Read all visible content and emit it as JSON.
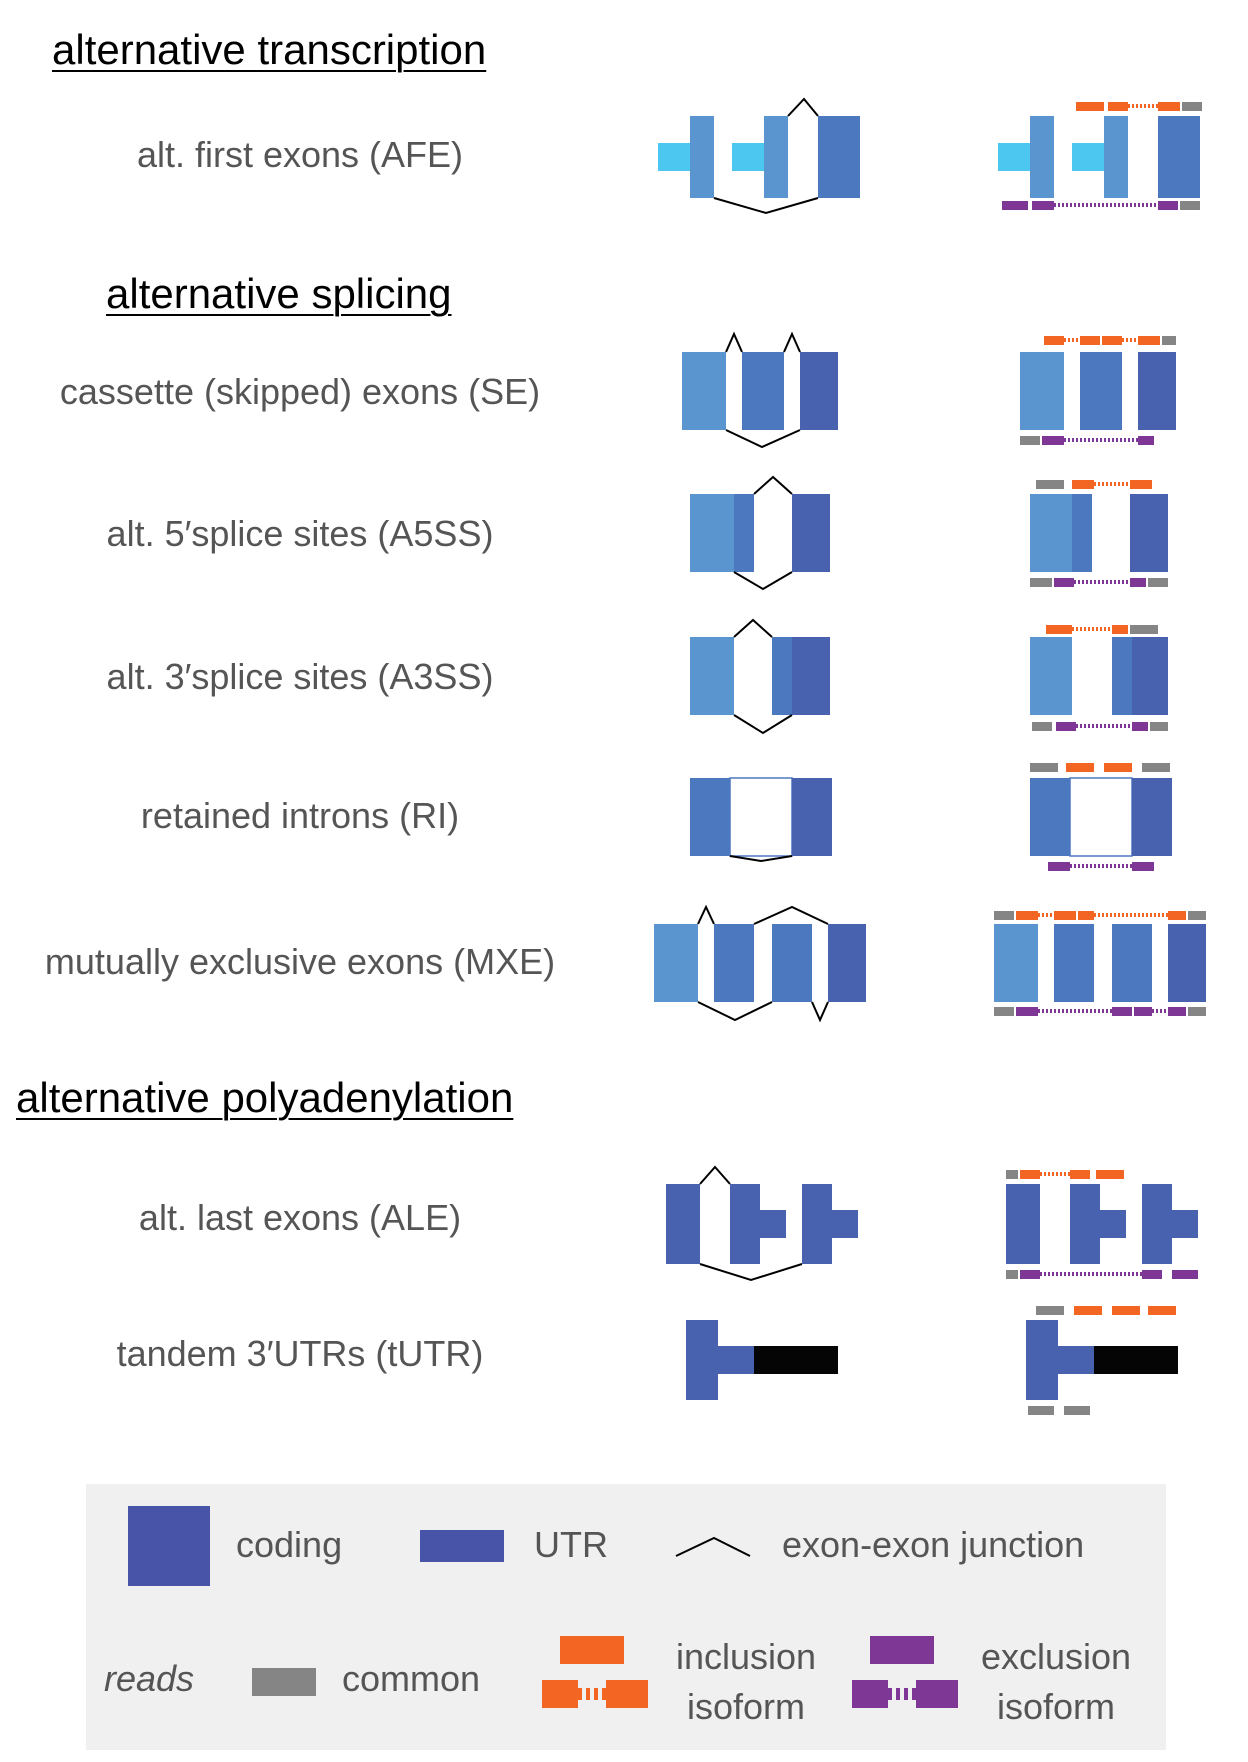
{
  "sections": {
    "transcription": "alternative transcription",
    "splicing": "alternative splicing",
    "polyadenylation": "alternative polyadenylation"
  },
  "events": {
    "afe": "alt. first exons (AFE)",
    "se": "cassette (skipped) exons (SE)",
    "a5ss": "alt. 5′splice sites (A5SS)",
    "a3ss": "alt. 3′splice sites (A3SS)",
    "ri": "retained introns (RI)",
    "mxe": "mutually exclusive exons (MXE)",
    "ale": "alt. last exons (ALE)",
    "tutr": "tandem 3′UTRs (tUTR)"
  },
  "legend": {
    "coding": "coding",
    "utr": "UTR",
    "junction": "exon-exon junction",
    "reads": "reads",
    "common": "common",
    "inclusion_line1": "inclusion",
    "inclusion_line2": "isoform",
    "exclusion_line1": "exclusion",
    "exclusion_line2": "isoform"
  },
  "colors": {
    "exon_light": "#5a95d0",
    "exon_mid": "#4c78c0",
    "exon_dark": "#4862b0",
    "exon_legend": "#4754a8",
    "utr_cyan": "#4cc7ef",
    "utr_black": "#050505",
    "read_common": "#858585",
    "read_inclusion": "#f26522",
    "read_exclusion": "#7e3795",
    "legend_bg": "#f0f0f0"
  }
}
